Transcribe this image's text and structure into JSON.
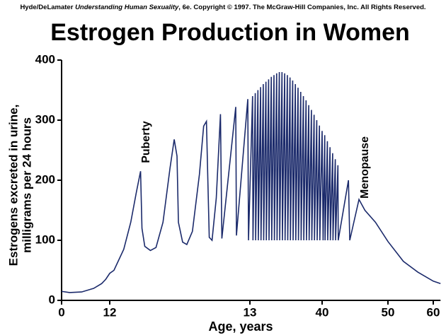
{
  "chart_data": {
    "type": "line",
    "credit": [
      "Hyde/DeLamater",
      "Understanding Human Sexuality",
      ", 6e.  Copyright © 1997. The McGraw-Hill Companies, Inc. All Rights Reserved."
    ],
    "title": "Estrogen Production in Women",
    "y_label": [
      "Estrogens excreted in urine,",
      "milligrams per 24 hours"
    ],
    "x_label": "Age, years",
    "annotations": [
      "Puberty",
      "Menopause"
    ],
    "color": "#1b2a6b",
    "x": [
      0,
      2,
      5,
      8,
      10,
      11,
      12,
      12.03,
      12.1,
      12.15,
      12.19,
      12.22,
      12.23,
      12.25,
      12.29,
      12.33,
      12.38,
      12.43,
      12.46,
      12.48,
      12.49,
      12.52,
      12.55,
      12.59,
      12.64,
      12.67,
      12.69,
      12.7,
      12.71,
      12.73,
      12.76,
      12.79,
      12.8,
      12.899,
      12.904,
      12.985,
      12.99,
      14,
      14.15,
      15,
      15.15,
      16,
      16.15,
      17,
      17.15,
      18,
      18.15,
      19,
      19.15,
      20,
      20.15,
      21,
      21.15,
      22,
      22.15,
      23,
      23.15,
      24,
      24.15,
      25,
      25.15,
      26,
      26.15,
      27,
      27.15,
      28,
      28.15,
      29,
      29.15,
      30,
      30.15,
      31,
      31.15,
      32,
      32.15,
      33,
      33.15,
      34,
      34.15,
      35,
      35.15,
      36,
      36.15,
      37,
      37.15,
      38,
      38.15,
      39,
      39.15,
      40,
      40.15,
      40.4,
      40.45,
      40.8,
      40.85,
      41.2,
      41.25,
      41.6,
      41.65,
      42,
      42.05,
      42.4,
      42.45,
      44,
      44.2,
      45.6,
      46.5,
      48.1,
      50,
      53.4,
      56.6,
      60,
      61.6
    ],
    "values": [
      15,
      13,
      14,
      20,
      28,
      35,
      45,
      50,
      85,
      130,
      180,
      215,
      120,
      90,
      83,
      88,
      130,
      220,
      268,
      240,
      130,
      97,
      93,
      115,
      210,
      290,
      298,
      200,
      105,
      100,
      170,
      310,
      103,
      322,
      108,
      335,
      100,
      340,
      100,
      345,
      100,
      350,
      100,
      355,
      100,
      360,
      100,
      364,
      100,
      368,
      100,
      372,
      100,
      375,
      100,
      378,
      100,
      380,
      100,
      380,
      100,
      378,
      100,
      375,
      100,
      371,
      100,
      366,
      100,
      360,
      100,
      354,
      100,
      347,
      100,
      340,
      100,
      333,
      100,
      325,
      100,
      317,
      100,
      309,
      100,
      300,
      100,
      291,
      100,
      282,
      100,
      275,
      100,
      265,
      100,
      255,
      100,
      245,
      100,
      235,
      100,
      225,
      100,
      200,
      100,
      168,
      150,
      130,
      98,
      65,
      47,
      32,
      28
    ],
    "xlim": [
      0,
      61.6
    ],
    "xticks": [
      0,
      12,
      13,
      40,
      50,
      60
    ],
    "ylim": [
      0,
      400
    ],
    "yticks": [
      0,
      100,
      200,
      300,
      400
    ],
    "grid": false
  }
}
